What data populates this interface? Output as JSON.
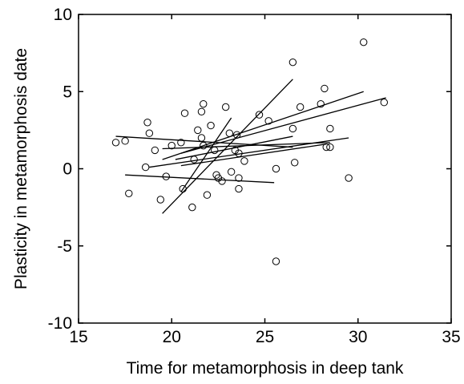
{
  "chart_data": {
    "type": "scatter",
    "title": "",
    "xlabel": "Time for metamorphosis in deep tank",
    "ylabel": "Plasticity in metamorphosis date",
    "xlim": [
      15,
      35
    ],
    "ylim": [
      -10,
      10
    ],
    "xticks": [
      15,
      20,
      25,
      30,
      35
    ],
    "yticks": [
      -10,
      -5,
      0,
      5,
      10
    ],
    "grid": false,
    "legend": "none",
    "marker": "open-circle",
    "points": [
      {
        "x": 17.0,
        "y": 1.7
      },
      {
        "x": 17.5,
        "y": 1.8
      },
      {
        "x": 17.7,
        "y": -1.6
      },
      {
        "x": 18.6,
        "y": 0.1
      },
      {
        "x": 18.7,
        "y": 3.0
      },
      {
        "x": 18.8,
        "y": 2.3
      },
      {
        "x": 19.1,
        "y": 1.2
      },
      {
        "x": 19.4,
        "y": -2.0
      },
      {
        "x": 19.7,
        "y": -0.5
      },
      {
        "x": 20.0,
        "y": 1.5
      },
      {
        "x": 20.5,
        "y": 1.7
      },
      {
        "x": 20.6,
        "y": -1.3
      },
      {
        "x": 20.7,
        "y": 3.6
      },
      {
        "x": 21.1,
        "y": -2.5
      },
      {
        "x": 21.2,
        "y": 0.6
      },
      {
        "x": 21.4,
        "y": 2.5
      },
      {
        "x": 21.6,
        "y": 3.7
      },
      {
        "x": 21.6,
        "y": 2.0
      },
      {
        "x": 21.7,
        "y": 4.2
      },
      {
        "x": 21.7,
        "y": 1.5
      },
      {
        "x": 21.9,
        "y": -1.7
      },
      {
        "x": 22.1,
        "y": 2.8
      },
      {
        "x": 22.3,
        "y": 1.2
      },
      {
        "x": 22.4,
        "y": -0.4
      },
      {
        "x": 22.5,
        "y": -0.6
      },
      {
        "x": 22.7,
        "y": -0.8
      },
      {
        "x": 22.9,
        "y": 4.0
      },
      {
        "x": 23.1,
        "y": 2.3
      },
      {
        "x": 23.2,
        "y": -0.2
      },
      {
        "x": 23.4,
        "y": 1.2
      },
      {
        "x": 23.5,
        "y": 2.2
      },
      {
        "x": 23.6,
        "y": 1.0
      },
      {
        "x": 23.6,
        "y": -0.6
      },
      {
        "x": 23.6,
        "y": -1.3
      },
      {
        "x": 23.9,
        "y": 0.5
      },
      {
        "x": 24.7,
        "y": 3.5
      },
      {
        "x": 25.2,
        "y": 3.1
      },
      {
        "x": 25.6,
        "y": 0.0
      },
      {
        "x": 25.6,
        "y": -6.0
      },
      {
        "x": 26.5,
        "y": 6.9
      },
      {
        "x": 26.5,
        "y": 2.6
      },
      {
        "x": 26.6,
        "y": 0.4
      },
      {
        "x": 26.9,
        "y": 4.0
      },
      {
        "x": 28.0,
        "y": 4.2
      },
      {
        "x": 28.2,
        "y": 5.2
      },
      {
        "x": 28.3,
        "y": 1.4
      },
      {
        "x": 28.5,
        "y": 2.6
      },
      {
        "x": 28.5,
        "y": 1.4
      },
      {
        "x": 29.5,
        "y": -0.6
      },
      {
        "x": 30.3,
        "y": 8.2
      },
      {
        "x": 31.4,
        "y": 4.3
      }
    ],
    "lines": [
      {
        "x": [
          17.0,
          26.5
        ],
        "y": [
          2.1,
          1.4
        ]
      },
      {
        "x": [
          17.5,
          25.5
        ],
        "y": [
          -0.4,
          -0.9
        ]
      },
      {
        "x": [
          19.5,
          26.5
        ],
        "y": [
          -2.9,
          5.8
        ]
      },
      {
        "x": [
          20.5,
          23.2
        ],
        "y": [
          -1.5,
          3.3
        ]
      },
      {
        "x": [
          18.8,
          29.5
        ],
        "y": [
          0.1,
          2.0
        ]
      },
      {
        "x": [
          19.5,
          30.3
        ],
        "y": [
          0.6,
          5.0
        ]
      },
      {
        "x": [
          20.5,
          31.5
        ],
        "y": [
          1.0,
          4.6
        ]
      },
      {
        "x": [
          20.5,
          28.3
        ],
        "y": [
          0.2,
          1.6
        ]
      },
      {
        "x": [
          20.2,
          26.5
        ],
        "y": [
          0.6,
          2.1
        ]
      },
      {
        "x": [
          19.5,
          28.5
        ],
        "y": [
          1.3,
          1.7
        ]
      }
    ]
  }
}
